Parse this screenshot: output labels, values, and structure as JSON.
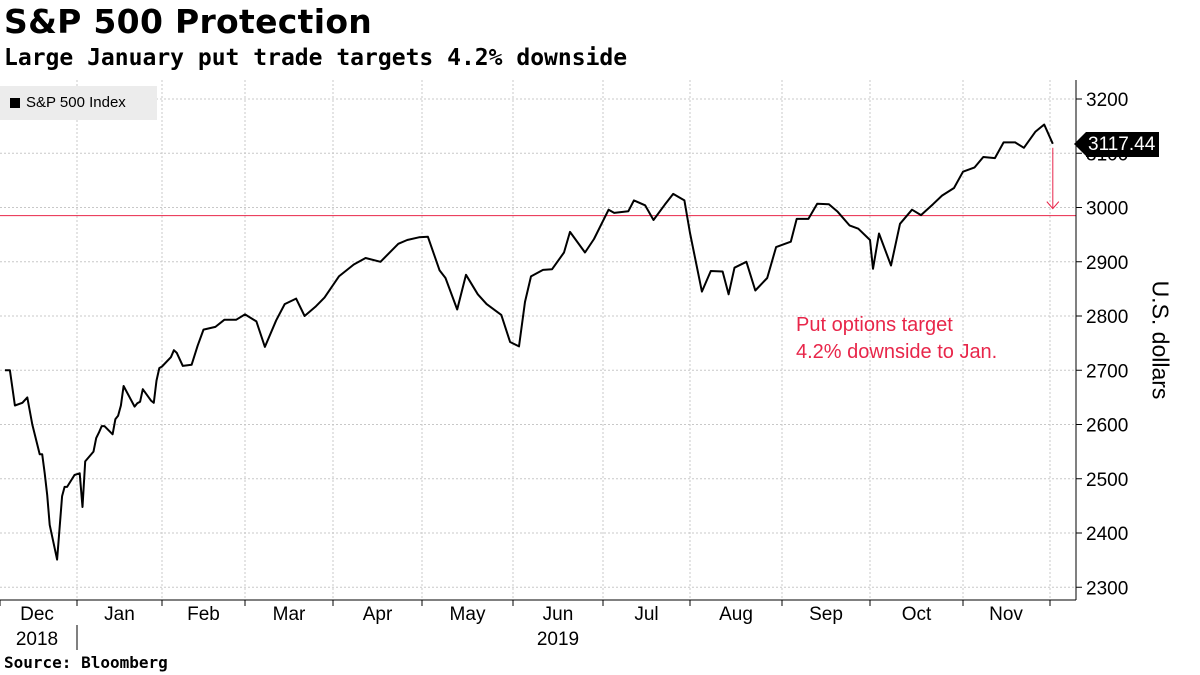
{
  "header": {
    "title": "S&P 500 Protection",
    "subtitle": "Large January put trade targets 4.2% downside"
  },
  "legend": {
    "label": "S&P 500 Index"
  },
  "footer": {
    "source": "Source: Bloomberg"
  },
  "annotation": {
    "line1": "Put options target",
    "line2": "4.2% downside to Jan."
  },
  "last_value": {
    "label": "3117.44"
  },
  "colors": {
    "line": "#000000",
    "accent": "#e8264a",
    "grid": "#c8c8c8"
  },
  "chart_data": {
    "type": "line",
    "title": "S&P 500 Protection",
    "subtitle": "Large January put trade targets 4.2% downside",
    "ylabel": "U.S. dollars",
    "ylim": [
      2280,
      3230
    ],
    "yticks": [
      2300,
      2400,
      2500,
      2600,
      2700,
      2800,
      2900,
      3000,
      3100,
      3200
    ],
    "x_ticks": [
      "Dec",
      "Jan",
      "Feb",
      "Mar",
      "Apr",
      "May",
      "Jun",
      "Jul",
      "Aug",
      "Sep",
      "Oct",
      "Nov"
    ],
    "x_years": [
      {
        "label": "2018",
        "under": "Dec"
      },
      {
        "label": "2019",
        "under": "Jun"
      }
    ],
    "grid": true,
    "legend_position": "top-left",
    "reference_line": {
      "value": 2985
    },
    "annotation_text": "Put options target 4.2% downside to Jan.",
    "series": [
      {
        "name": "S&P 500 Index",
        "x": [
          "2018-11-29",
          "2018-12-03",
          "2018-12-05",
          "2018-12-07",
          "2018-12-10",
          "2018-12-12",
          "2018-12-14",
          "2018-12-17",
          "2018-12-18",
          "2018-12-19",
          "2018-12-20",
          "2018-12-21",
          "2018-12-24",
          "2018-12-26",
          "2018-12-27",
          "2018-12-28",
          "2018-12-31",
          "2019-01-02",
          "2019-01-03",
          "2019-01-04",
          "2019-01-07",
          "2019-01-08",
          "2019-01-09",
          "2019-01-10",
          "2019-01-11",
          "2019-01-14",
          "2019-01-15",
          "2019-01-16",
          "2019-01-17",
          "2019-01-18",
          "2019-01-22",
          "2019-01-23",
          "2019-01-24",
          "2019-01-25",
          "2019-01-28",
          "2019-01-29",
          "2019-01-30",
          "2019-01-31",
          "2019-02-01",
          "2019-02-04",
          "2019-02-05",
          "2019-02-06",
          "2019-02-08",
          "2019-02-11",
          "2019-02-13",
          "2019-02-15",
          "2019-02-19",
          "2019-02-22",
          "2019-02-26",
          "2019-03-01",
          "2019-03-05",
          "2019-03-08",
          "2019-03-12",
          "2019-03-15",
          "2019-03-19",
          "2019-03-22",
          "2019-03-26",
          "2019-03-29",
          "2019-04-03",
          "2019-04-08",
          "2019-04-12",
          "2019-04-17",
          "2019-04-23",
          "2019-04-26",
          "2019-04-30",
          "2019-05-03",
          "2019-05-07",
          "2019-05-09",
          "2019-05-13",
          "2019-05-16",
          "2019-05-20",
          "2019-05-23",
          "2019-05-28",
          "2019-05-31",
          "2019-06-03",
          "2019-06-05",
          "2019-06-07",
          "2019-06-11",
          "2019-06-14",
          "2019-06-18",
          "2019-06-20",
          "2019-06-25",
          "2019-06-28",
          "2019-07-03",
          "2019-07-05",
          "2019-07-10",
          "2019-07-12",
          "2019-07-16",
          "2019-07-19",
          "2019-07-23",
          "2019-07-26",
          "2019-07-30",
          "2019-08-01",
          "2019-08-05",
          "2019-08-08",
          "2019-08-12",
          "2019-08-14",
          "2019-08-16",
          "2019-08-20",
          "2019-08-23",
          "2019-08-27",
          "2019-08-30",
          "2019-09-04",
          "2019-09-06",
          "2019-09-10",
          "2019-09-13",
          "2019-09-17",
          "2019-09-20",
          "2019-09-24",
          "2019-09-27",
          "2019-10-01",
          "2019-10-02",
          "2019-10-04",
          "2019-10-08",
          "2019-10-11",
          "2019-10-15",
          "2019-10-18",
          "2019-10-22",
          "2019-10-25",
          "2019-10-29",
          "2019-11-01",
          "2019-11-05",
          "2019-11-08",
          "2019-11-12",
          "2019-11-15",
          "2019-11-19",
          "2019-11-22",
          "2019-11-26",
          "2019-11-29",
          "2019-12-02"
        ],
        "values": [
          2790,
          2700,
          2700,
          2635,
          2640,
          2650,
          2600,
          2545,
          2545,
          2510,
          2470,
          2415,
          2351,
          2468,
          2485,
          2485,
          2507,
          2510,
          2448,
          2532,
          2550,
          2575,
          2585,
          2597,
          2597,
          2582,
          2610,
          2616,
          2635,
          2671,
          2633,
          2639,
          2642,
          2665,
          2644,
          2640,
          2681,
          2704,
          2707,
          2724,
          2737,
          2732,
          2708,
          2710,
          2745,
          2775,
          2780,
          2793,
          2793,
          2803,
          2790,
          2743,
          2792,
          2822,
          2832,
          2800,
          2818,
          2834,
          2873,
          2895,
          2907,
          2900,
          2933,
          2940,
          2945,
          2946,
          2884,
          2870,
          2812,
          2876,
          2840,
          2822,
          2802,
          2752,
          2744,
          2826,
          2873,
          2885,
          2886,
          2917,
          2955,
          2917,
          2942,
          2996,
          2990,
          2993,
          3013,
          3004,
          2977,
          3005,
          3025,
          3013,
          2953,
          2845,
          2883,
          2882,
          2840,
          2889,
          2900,
          2847,
          2870,
          2927,
          2937,
          2979,
          2979,
          3007,
          3006,
          2992,
          2967,
          2961,
          2940,
          2887,
          2952,
          2893,
          2970,
          2996,
          2986,
          3006,
          3022,
          3036,
          3066,
          3074,
          3093,
          3091,
          3120,
          3120,
          3110,
          3140,
          3153,
          3117.44
        ]
      }
    ]
  }
}
